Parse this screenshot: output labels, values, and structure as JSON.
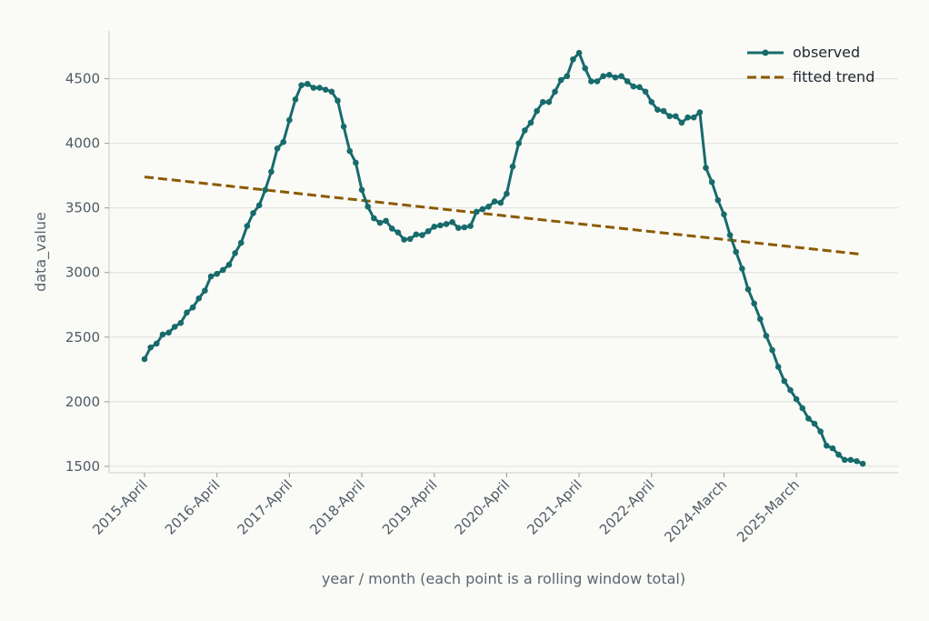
{
  "chart_data": {
    "type": "line",
    "title": "",
    "xlabel": "year / month (each point is a rolling window total)",
    "ylabel": "data_value",
    "ylim": [
      1450,
      4870
    ],
    "y_ticks": [
      1500,
      2000,
      2500,
      3000,
      3500,
      4000,
      4500
    ],
    "x_ticks": [
      {
        "i": 0,
        "label": "2015-April"
      },
      {
        "i": 12,
        "label": "2016-April"
      },
      {
        "i": 24,
        "label": "2017-April"
      },
      {
        "i": 36,
        "label": "2018-April"
      },
      {
        "i": 48,
        "label": "2019-April"
      },
      {
        "i": 60,
        "label": "2020-April"
      },
      {
        "i": 72,
        "label": "2021-April"
      },
      {
        "i": 84,
        "label": "2022-April"
      },
      {
        "i": 96,
        "label": "2024-March"
      },
      {
        "i": 108,
        "label": "2025-March"
      }
    ],
    "grid": "horizontal",
    "legend": "top-right",
    "colors": {
      "observed": "#176b6b",
      "trend": "#8b5a00",
      "grid": "#dedede",
      "axis": "#cccccc"
    },
    "series": [
      {
        "name": "observed",
        "style": "solid-line-with-markers",
        "values": [
          2330,
          2420,
          2450,
          2520,
          2535,
          2580,
          2610,
          2690,
          2730,
          2800,
          2860,
          2970,
          2990,
          3020,
          3060,
          3150,
          3230,
          3360,
          3460,
          3520,
          3640,
          3780,
          3960,
          4010,
          4180,
          4340,
          4450,
          4460,
          4430,
          4430,
          4415,
          4400,
          4330,
          4130,
          3940,
          3850,
          3640,
          3510,
          3420,
          3385,
          3400,
          3340,
          3310,
          3255,
          3260,
          3295,
          3290,
          3320,
          3355,
          3365,
          3375,
          3390,
          3345,
          3350,
          3360,
          3470,
          3490,
          3510,
          3550,
          3540,
          3610,
          3820,
          4000,
          4100,
          4160,
          4250,
          4320,
          4320,
          4400,
          4490,
          4520,
          4650,
          4700,
          4580,
          4480,
          4480,
          4520,
          4530,
          4510,
          4520,
          4480,
          4440,
          4435,
          4400,
          4320,
          4260,
          4250,
          4210,
          4210,
          4160,
          4200,
          4200,
          4240,
          3810,
          3700,
          3560,
          3450,
          3290,
          3160,
          3030,
          2870,
          2760,
          2640,
          2510,
          2400,
          2270,
          2160,
          2090,
          2020,
          1950,
          1870,
          1830,
          1770,
          1660,
          1640,
          1590,
          1550,
          1550,
          1540,
          1520
        ]
      },
      {
        "name": "fitted trend",
        "style": "dashed-line",
        "start": 3740,
        "end": 3140
      }
    ]
  }
}
